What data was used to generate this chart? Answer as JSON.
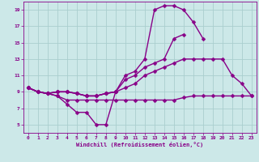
{
  "xlabel": "Windchill (Refroidissement éolien,°C)",
  "x": [
    0,
    1,
    2,
    3,
    4,
    5,
    6,
    7,
    8,
    9,
    10,
    11,
    12,
    13,
    14,
    15,
    16,
    17,
    18,
    19,
    20,
    21,
    22,
    23
  ],
  "line1": [
    9.5,
    9.0,
    8.8,
    8.5,
    7.5,
    6.5,
    6.5,
    5.0,
    5.0,
    9.0,
    null,
    null,
    null,
    null,
    null,
    null,
    null,
    null,
    null,
    null,
    null,
    null,
    null,
    null
  ],
  "line2": [
    9.5,
    9.0,
    8.8,
    9.0,
    9.0,
    8.8,
    8.5,
    8.5,
    8.8,
    9.0,
    11.0,
    11.5,
    13.0,
    19.0,
    19.5,
    19.5,
    19.0,
    17.5,
    15.5,
    null,
    null,
    null,
    null,
    null
  ],
  "line3": [
    9.5,
    9.0,
    8.8,
    9.0,
    9.0,
    8.8,
    8.5,
    8.5,
    8.8,
    9.0,
    10.5,
    11.0,
    12.0,
    12.5,
    13.0,
    15.5,
    16.0,
    null,
    null,
    null,
    null,
    null,
    null,
    null
  ],
  "line4": [
    9.5,
    9.0,
    8.8,
    9.0,
    9.0,
    8.8,
    8.5,
    8.5,
    8.8,
    9.0,
    9.5,
    10.0,
    11.0,
    11.5,
    12.0,
    12.5,
    13.0,
    13.0,
    13.0,
    13.0,
    13.0,
    11.0,
    10.0,
    8.5
  ],
  "line5": [
    9.5,
    9.0,
    8.8,
    8.5,
    8.0,
    8.0,
    8.0,
    8.0,
    8.0,
    8.0,
    8.0,
    8.0,
    8.0,
    8.0,
    8.0,
    8.0,
    8.3,
    8.5,
    8.5,
    8.5,
    8.5,
    8.5,
    8.5,
    8.5
  ],
  "ylim": [
    4,
    20
  ],
  "xlim": [
    -0.5,
    23.5
  ],
  "yticks": [
    5,
    7,
    9,
    11,
    13,
    15,
    17,
    19
  ],
  "xticks": [
    0,
    1,
    2,
    3,
    4,
    5,
    6,
    7,
    8,
    9,
    10,
    11,
    12,
    13,
    14,
    15,
    16,
    17,
    18,
    19,
    20,
    21,
    22,
    23
  ],
  "line_color": "#880088",
  "bg_color": "#cce8e8",
  "grid_color": "#aacece",
  "markersize": 2.5,
  "linewidth": 1.0
}
